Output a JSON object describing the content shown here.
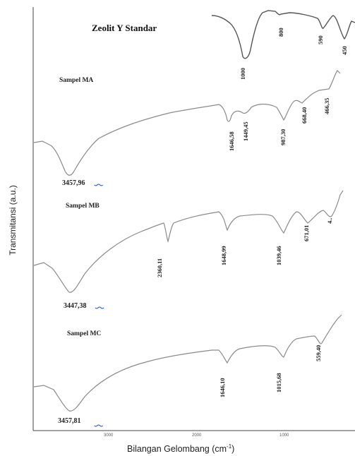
{
  "chart_data": {
    "type": "line",
    "ylabel": "Transmitansi (a.u.)",
    "xlabel": "Bilangan Gelombang (cm",
    "xlabel_sup": "-1",
    "xlabel_close": ")",
    "x_ticks": [
      "3000",
      "2000",
      "1000"
    ],
    "x_tick_values": [
      3000,
      2000,
      1000
    ],
    "xlim": [
      4000,
      400
    ],
    "x_direction": "descending",
    "grid": false,
    "series": [
      {
        "name": "Zeolit Y Standar",
        "peaks": [
          {
            "wavenumber": 1000,
            "label": "1000"
          },
          {
            "wavenumber": 800,
            "label": "800"
          },
          {
            "wavenumber": 590,
            "label": "590"
          },
          {
            "wavenumber": 450,
            "label": "450"
          }
        ]
      },
      {
        "name": "Sampel MA",
        "peaks": [
          {
            "wavenumber": 3457.96,
            "label": "3457,96"
          },
          {
            "wavenumber": 1646.58,
            "label": "1646,58"
          },
          {
            "wavenumber": 1449.45,
            "label": "1449,45"
          },
          {
            "wavenumber": 987.3,
            "label": "987,30"
          },
          {
            "wavenumber": 668.4,
            "label": "668,40"
          },
          {
            "wavenumber": 466.35,
            "label": "466,35"
          }
        ]
      },
      {
        "name": "Sampel MB",
        "peaks": [
          {
            "wavenumber": 3447.38,
            "label": "3447,38"
          },
          {
            "wavenumber": 2360.11,
            "label": "2360,11"
          },
          {
            "wavenumber": 1648.99,
            "label": "1648,99"
          },
          {
            "wavenumber": 1039.46,
            "label": "1039,46"
          },
          {
            "wavenumber": 671.01,
            "label": "671,01"
          },
          {
            "wavenumber": 466,
            "label": "4.."
          }
        ]
      },
      {
        "name": "Sampel MC",
        "peaks": [
          {
            "wavenumber": 3457.81,
            "label": "3457,81"
          },
          {
            "wavenumber": 1646.1,
            "label": "1646,10"
          },
          {
            "wavenumber": 1015.68,
            "label": "1015,68"
          },
          {
            "wavenumber": 559.4,
            "label": "559,40"
          }
        ]
      }
    ]
  }
}
